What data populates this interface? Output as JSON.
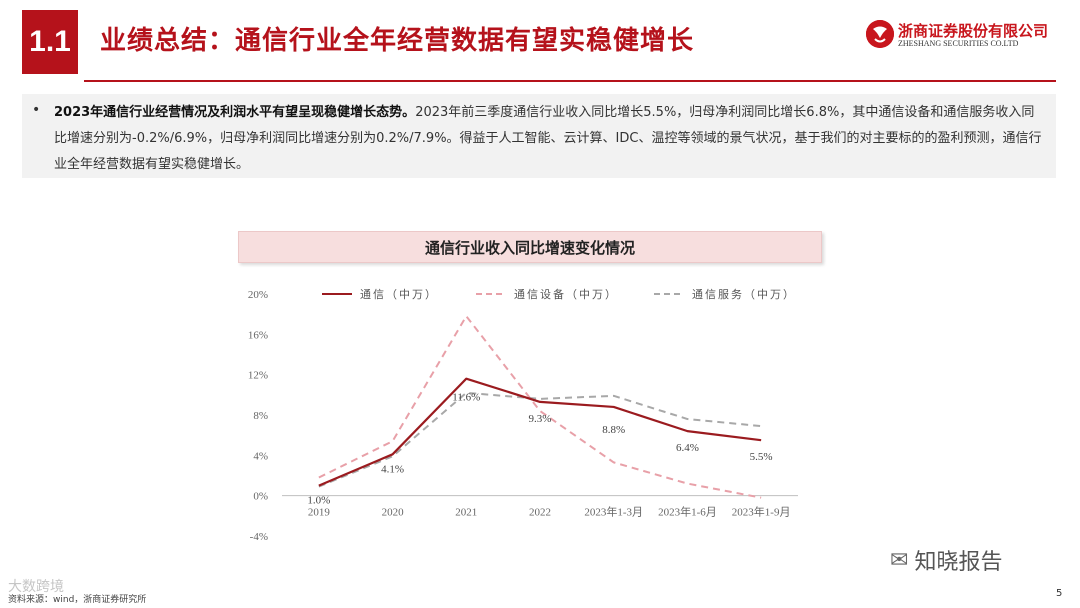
{
  "header": {
    "section_number": "1.1",
    "title": "业绩总结：通信行业全年经营数据有望实稳健增长",
    "company_cn": "浙商证券股份有限公司",
    "company_en": "ZHESHANG SECURITIES CO.LTD",
    "brand_color": "#b5121b"
  },
  "summary": {
    "bullet": "•",
    "bold": "2023年通信行业经营情况及利润水平有望呈现稳健增长态势。",
    "body": "2023年前三季度通信行业收入同比增长5.5%，归母净利润同比增长6.8%，其中通信设备和通信服务收入同比增速分别为-0.2%/6.9%，归母净利润同比增速分别为0.2%/7.9%。得益于人工智能、云计算、IDC、温控等领域的景气状况，基于我们的对主要标的的盈利预测，通信行业全年经营数据有望实稳健增长。"
  },
  "chart_title": "通信行业收入同比增速变化情况",
  "chart_data": {
    "type": "line",
    "title": "通信行业收入同比增速变化情况",
    "categories": [
      "2019",
      "2020",
      "2021",
      "2022",
      "2023年1-3月",
      "2023年1-6月",
      "2023年1-9月"
    ],
    "series": [
      {
        "name": "通信（中万）",
        "values": [
          1.0,
          4.1,
          11.6,
          9.3,
          8.8,
          6.4,
          5.5
        ],
        "color": "#9b1b1f",
        "dash": "solid",
        "labels": [
          "1.0%",
          "4.1%",
          "11.6%",
          "9.3%",
          "8.8%",
          "6.4%",
          "5.5%"
        ]
      },
      {
        "name": "通信设备（中万）",
        "values": [
          1.8,
          5.4,
          17.8,
          8.4,
          3.3,
          1.2,
          -0.2
        ],
        "color": "#e8a0a8",
        "dash": "dashed"
      },
      {
        "name": "通信服务（中万）",
        "values": [
          0.9,
          3.9,
          10.2,
          9.6,
          9.9,
          7.6,
          6.9
        ],
        "color": "#a8a8a8",
        "dash": "dashed"
      }
    ],
    "ylim": [
      -4,
      20
    ],
    "yticks": [
      "-4%",
      "0%",
      "4%",
      "8%",
      "12%",
      "16%",
      "20%"
    ],
    "legend_position": "top",
    "grid": false
  },
  "footer": {
    "source": "资料来源：wind，浙商证券研究所",
    "watermark_left": "大数跨境",
    "watermark_right": "知晓报告",
    "page_number": "5"
  }
}
